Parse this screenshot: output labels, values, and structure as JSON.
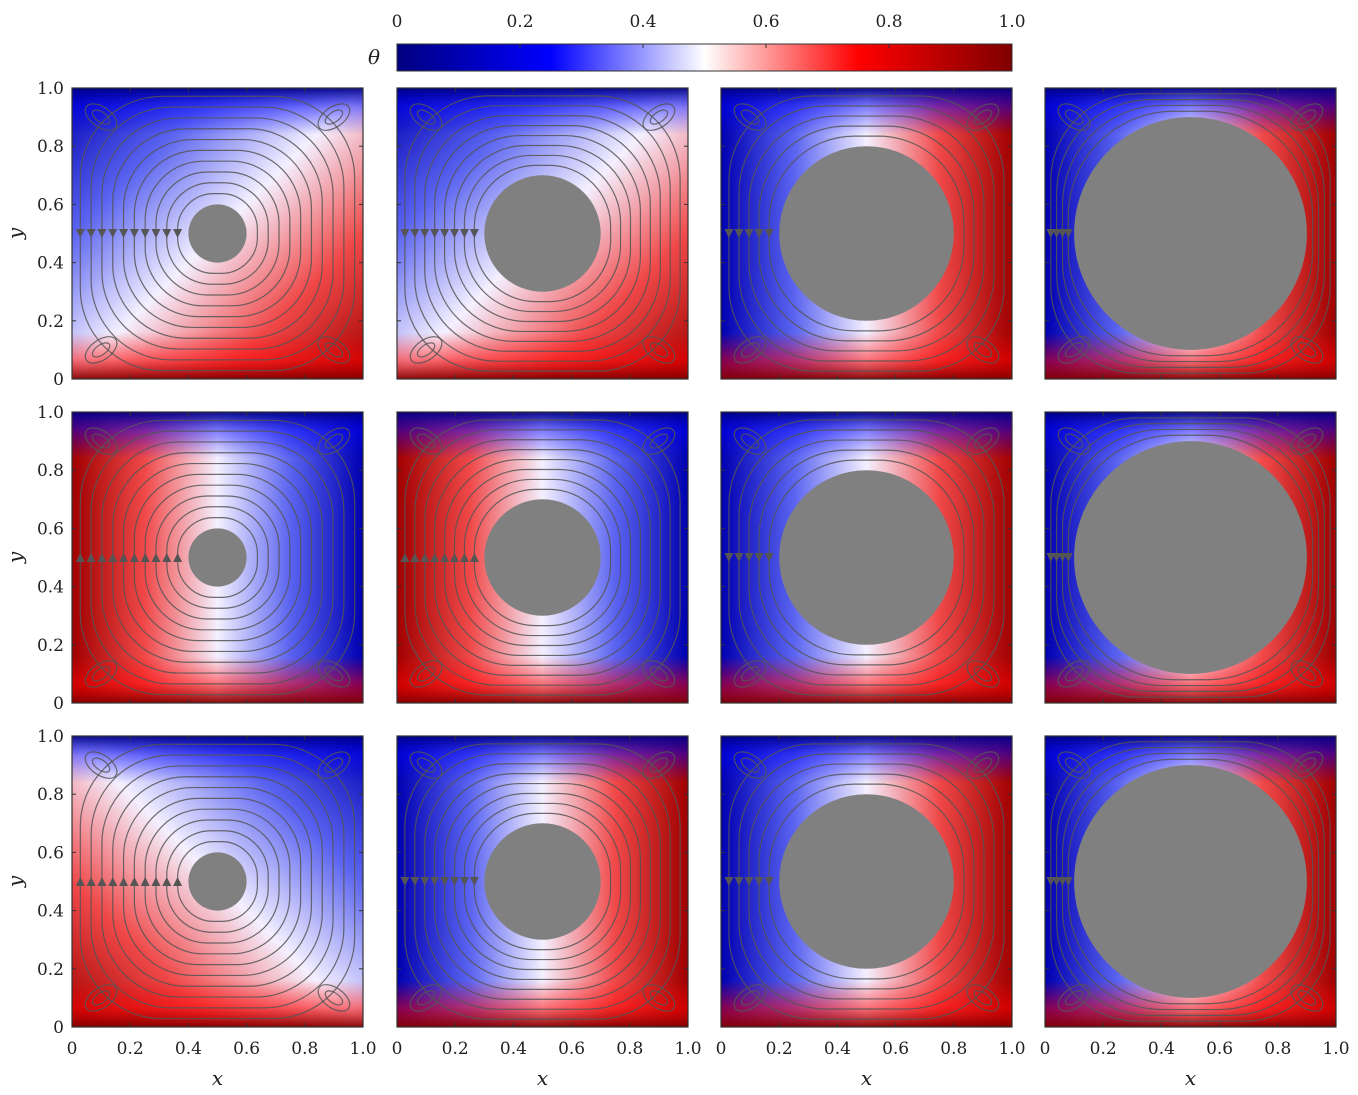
{
  "chart_data": {
    "type": "heatmap",
    "title": "",
    "colorbar": {
      "label": "θ",
      "ticks": [
        "0",
        "0.2",
        "0.4",
        "0.6",
        "0.8",
        "1.0"
      ],
      "range": [
        0,
        1
      ],
      "colors": [
        "#00007f",
        "#0000ff",
        "#ffffff",
        "#ff0000",
        "#7f0000"
      ]
    },
    "xlabel": "x",
    "ylabel": "y",
    "xlim": [
      0,
      1
    ],
    "ylim": [
      0,
      1
    ],
    "xticks": [
      "0",
      "0.2",
      "0.4",
      "0.6",
      "0.8",
      "1.0"
    ],
    "yticks": [
      "0",
      "0.2",
      "0.4",
      "0.6",
      "0.8",
      "1.0"
    ],
    "obstacle_color": "#808080",
    "streamline_color": "#555555",
    "panels": [
      {
        "row": 1,
        "col": 1,
        "cylinder_radius": 0.1,
        "cylinder_center": [
          0.5,
          0.5
        ],
        "rotation": "counterclockwise",
        "hot_side": "bottom-right",
        "cold_side": "top-left"
      },
      {
        "row": 1,
        "col": 2,
        "cylinder_radius": 0.2,
        "cylinder_center": [
          0.5,
          0.5
        ],
        "rotation": "counterclockwise",
        "hot_side": "bottom-right",
        "cold_side": "top-left"
      },
      {
        "row": 1,
        "col": 3,
        "cylinder_radius": 0.3,
        "cylinder_center": [
          0.5,
          0.5
        ],
        "rotation": "counterclockwise",
        "hot_side": "right",
        "cold_side": "left"
      },
      {
        "row": 1,
        "col": 4,
        "cylinder_radius": 0.4,
        "cylinder_center": [
          0.5,
          0.5
        ],
        "rotation": "counterclockwise",
        "hot_side": "right",
        "cold_side": "left"
      },
      {
        "row": 2,
        "col": 1,
        "cylinder_radius": 0.1,
        "cylinder_center": [
          0.5,
          0.5
        ],
        "rotation": "clockwise",
        "hot_side": "left",
        "cold_side": "right"
      },
      {
        "row": 2,
        "col": 2,
        "cylinder_radius": 0.2,
        "cylinder_center": [
          0.5,
          0.5
        ],
        "rotation": "clockwise",
        "hot_side": "left",
        "cold_side": "right"
      },
      {
        "row": 2,
        "col": 3,
        "cylinder_radius": 0.3,
        "cylinder_center": [
          0.5,
          0.5
        ],
        "rotation": "counterclockwise",
        "hot_side": "right",
        "cold_side": "left"
      },
      {
        "row": 2,
        "col": 4,
        "cylinder_radius": 0.4,
        "cylinder_center": [
          0.5,
          0.5
        ],
        "rotation": "counterclockwise",
        "hot_side": "right",
        "cold_side": "left"
      },
      {
        "row": 3,
        "col": 1,
        "cylinder_radius": 0.1,
        "cylinder_center": [
          0.5,
          0.5
        ],
        "rotation": "clockwise",
        "hot_side": "bottom-left",
        "cold_side": "top-right"
      },
      {
        "row": 3,
        "col": 2,
        "cylinder_radius": 0.2,
        "cylinder_center": [
          0.5,
          0.5
        ],
        "rotation": "counterclockwise",
        "hot_side": "right",
        "cold_side": "left"
      },
      {
        "row": 3,
        "col": 3,
        "cylinder_radius": 0.3,
        "cylinder_center": [
          0.5,
          0.5
        ],
        "rotation": "counterclockwise",
        "hot_side": "right",
        "cold_side": "left"
      },
      {
        "row": 3,
        "col": 4,
        "cylinder_radius": 0.4,
        "cylinder_center": [
          0.5,
          0.5
        ],
        "rotation": "counterclockwise",
        "hot_side": "right",
        "cold_side": "left"
      }
    ]
  }
}
